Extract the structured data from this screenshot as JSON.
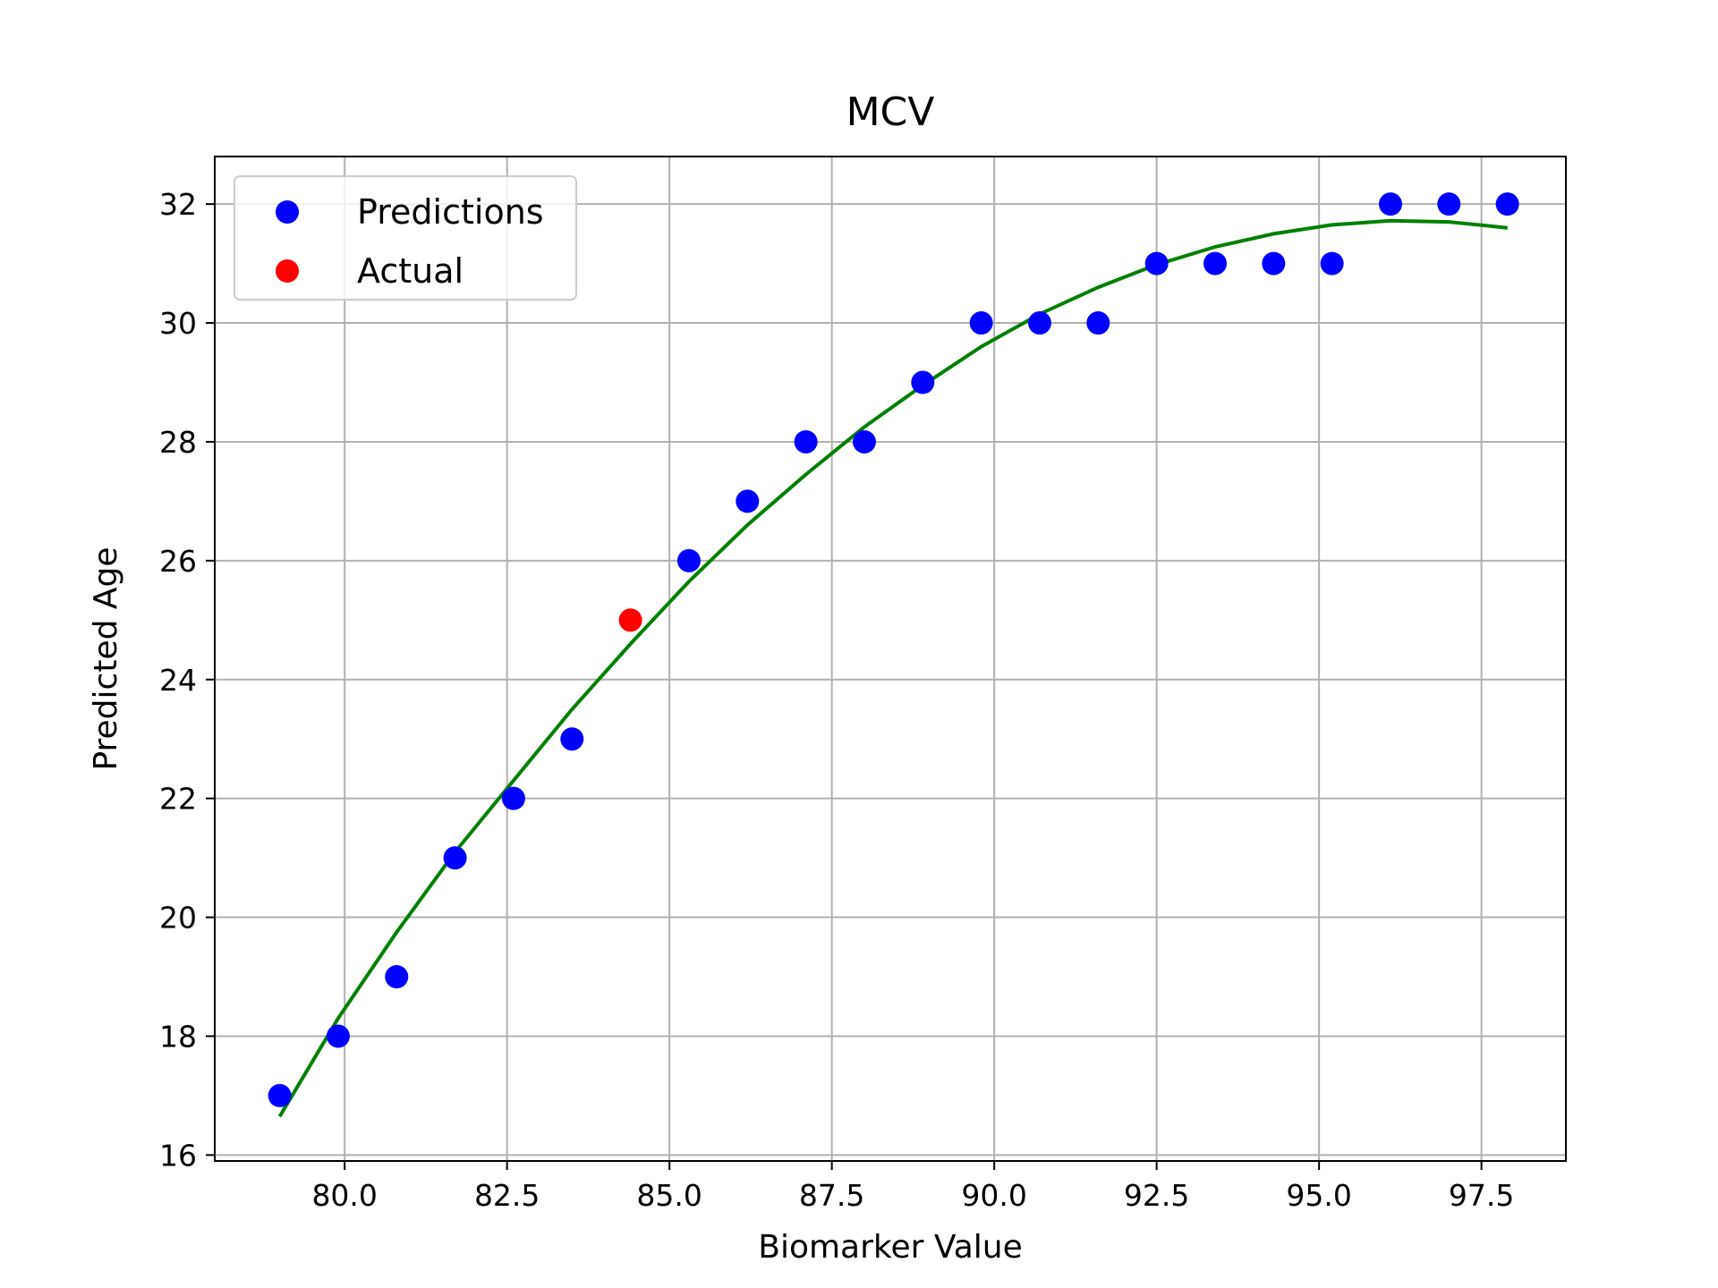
{
  "chart_data": {
    "type": "scatter",
    "title": "MCV",
    "xlabel": "Biomarker Value",
    "ylabel": "Predicted Age",
    "xlim": [
      78.0,
      98.8
    ],
    "ylim": [
      15.9,
      32.8
    ],
    "xticks": [
      80.0,
      82.5,
      85.0,
      87.5,
      90.0,
      92.5,
      95.0,
      97.5
    ],
    "xtick_labels": [
      "80.0",
      "82.5",
      "85.0",
      "87.5",
      "90.0",
      "92.5",
      "95.0",
      "97.5"
    ],
    "yticks": [
      16,
      18,
      20,
      22,
      24,
      26,
      28,
      30,
      32
    ],
    "ytick_labels": [
      "16",
      "18",
      "20",
      "22",
      "24",
      "26",
      "28",
      "30",
      "32"
    ],
    "grid": true,
    "legend_position": "top-left",
    "series": [
      {
        "name": "Predictions",
        "kind": "scatter",
        "color": "#0000ff",
        "x": [
          79.0,
          79.9,
          80.8,
          81.7,
          82.6,
          83.5,
          85.3,
          86.2,
          87.1,
          88.0,
          88.9,
          89.8,
          90.7,
          91.6,
          92.5,
          93.4,
          94.3,
          95.2,
          96.1,
          97.0,
          97.9
        ],
        "y": [
          17,
          18,
          19,
          21,
          22,
          23,
          26,
          27,
          28,
          28,
          29,
          30,
          30,
          30,
          31,
          31,
          31,
          31,
          32,
          32,
          32
        ]
      },
      {
        "name": "Actual",
        "kind": "scatter",
        "color": "#ff0000",
        "x": [
          84.4
        ],
        "y": [
          25
        ]
      },
      {
        "kind": "line",
        "color": "#008000",
        "x": [
          79.0,
          79.9,
          80.8,
          81.7,
          82.6,
          83.5,
          84.4,
          85.3,
          86.2,
          87.1,
          88.0,
          88.9,
          89.8,
          90.7,
          91.6,
          92.5,
          93.4,
          94.3,
          95.2,
          96.1,
          97.0,
          97.9
        ],
        "y": [
          16.65,
          18.3,
          19.75,
          21.1,
          22.3,
          23.5,
          24.6,
          25.65,
          26.6,
          27.45,
          28.25,
          28.95,
          29.6,
          30.15,
          30.6,
          30.98,
          31.28,
          31.5,
          31.65,
          31.72,
          31.7,
          31.6
        ]
      }
    ]
  }
}
